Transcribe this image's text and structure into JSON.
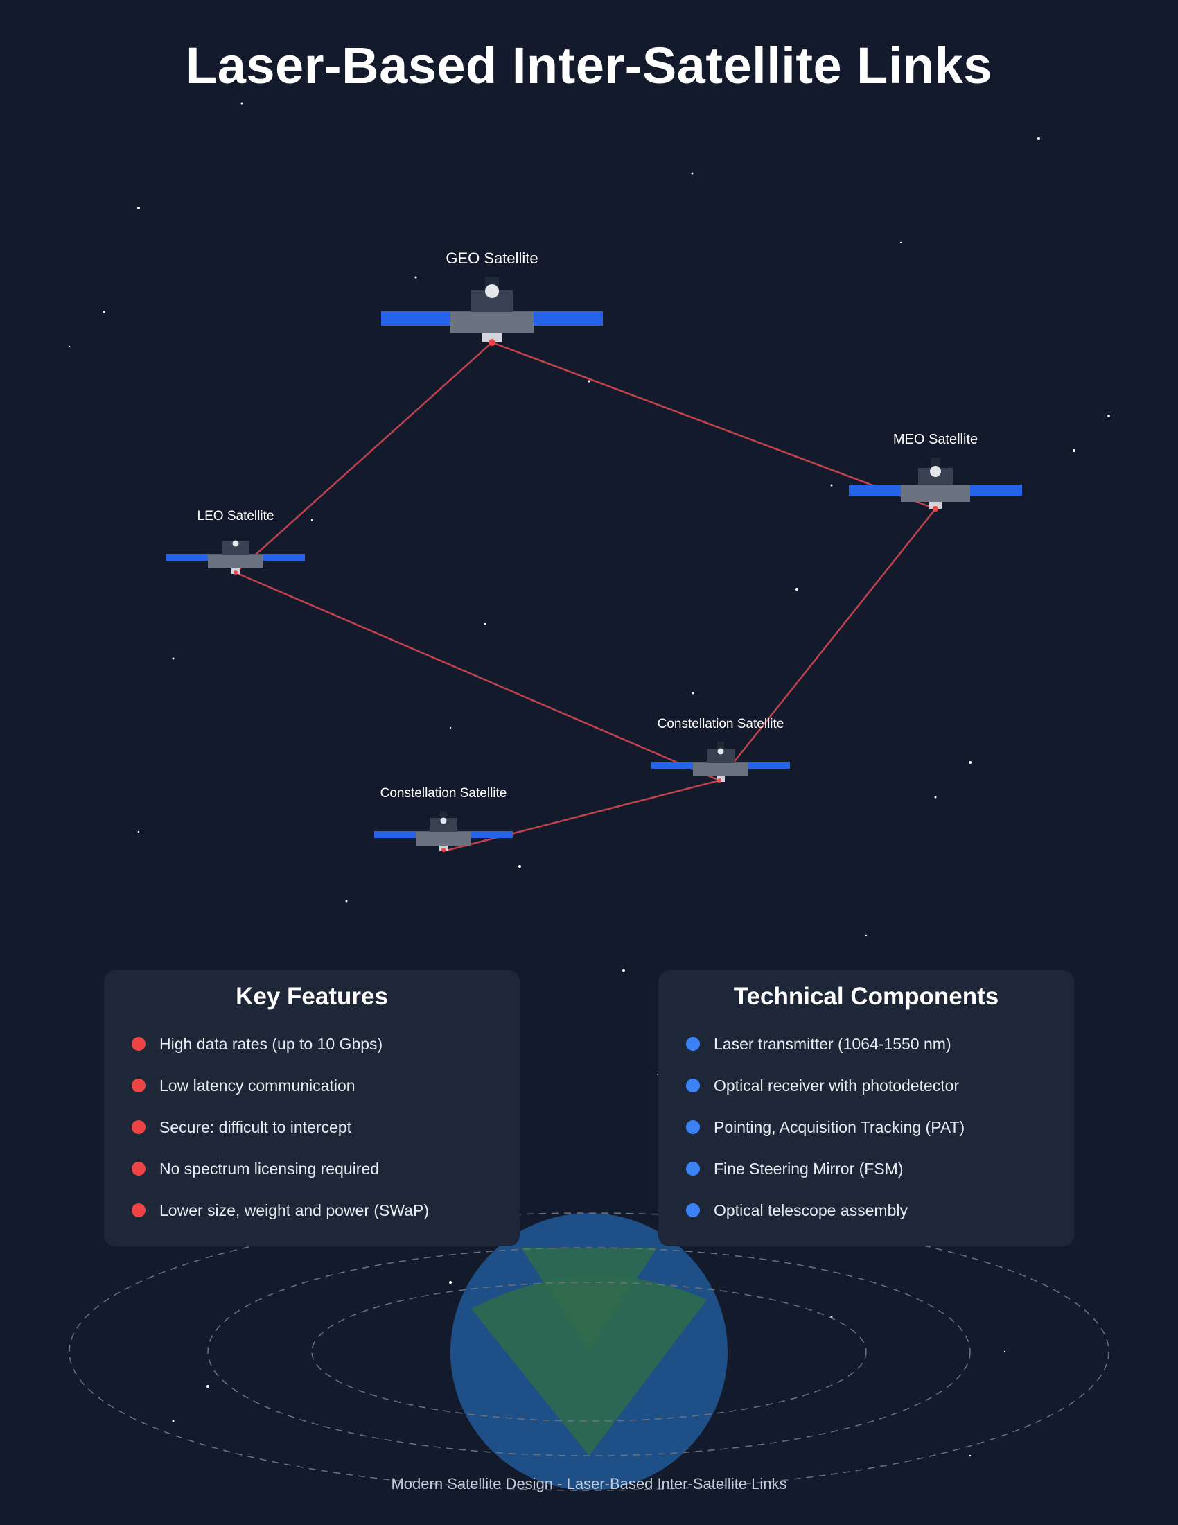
{
  "title": "Laser-Based Inter-Satellite Links",
  "colors": {
    "background": "#131a2b",
    "panel": "#1d2737",
    "laser": "#e04a55",
    "solar_panel": "#2563eb",
    "earth_ocean": "#1e4f86",
    "earth_land": "#2f6b4a",
    "feature_bullet": "#ef4444",
    "component_bullet": "#3b82f6"
  },
  "satellites": {
    "geo": "GEO Satellite",
    "meo": "MEO Satellite",
    "leo": "LEO Satellite",
    "constellation_a": "Constellation Satellite",
    "constellation_b": "Constellation Satellite"
  },
  "key_features": {
    "title": "Key Features",
    "items": [
      "High data rates (up to 10 Gbps)",
      "Low latency communication",
      "Secure: difficult to intercept",
      "No spectrum licensing required",
      "Lower size, weight and power (SWaP)"
    ]
  },
  "technical_components": {
    "title": "Technical Components",
    "items": [
      "Laser transmitter (1064-1550 nm)",
      "Optical receiver with photodetector",
      "Pointing, Acquisition Tracking (PAT)",
      "Fine Steering Mirror (FSM)",
      "Optical telescope assembly"
    ]
  },
  "footer": "Modern Satellite Design - Laser-Based Inter-Satellite Links"
}
